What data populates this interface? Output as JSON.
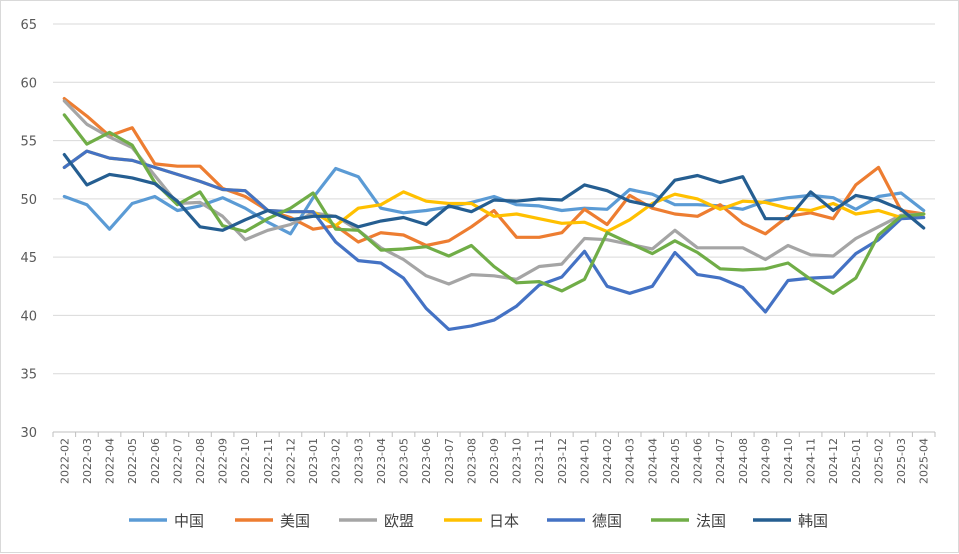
{
  "chart_data": {
    "type": "line",
    "title": "",
    "xlabel": "",
    "ylabel": "",
    "ylim": [
      30,
      65
    ],
    "yticks": [
      30,
      35,
      40,
      45,
      50,
      55,
      60,
      65
    ],
    "grid": "horizontal",
    "legend_position": "bottom",
    "x": [
      "2022-02",
      "2022-03",
      "2022-04",
      "2022-05",
      "2022-06",
      "2022-07",
      "2022-08",
      "2022-09",
      "2022-10",
      "2022-11",
      "2022-12",
      "2023-01",
      "2023-02",
      "2023-03",
      "2023-04",
      "2023-05",
      "2023-06",
      "2023-07",
      "2023-08",
      "2023-09",
      "2023-10",
      "2023-11",
      "2023-12",
      "2024-01",
      "2024-02",
      "2024-03",
      "2024-04",
      "2024-05",
      "2024-06",
      "2024-07",
      "2024-08",
      "2024-09",
      "2024-10",
      "2024-11",
      "2024-12",
      "2025-01",
      "2025-02",
      "2025-03",
      "2025-04"
    ],
    "series": [
      {
        "name": "中国",
        "color": "#5B9BD5",
        "values": [
          50.2,
          49.5,
          47.4,
          49.6,
          50.2,
          49.0,
          49.4,
          50.1,
          49.2,
          48.0,
          47.0,
          50.1,
          52.6,
          51.9,
          49.2,
          48.8,
          49.0,
          49.3,
          49.7,
          50.2,
          49.5,
          49.4,
          49.0,
          49.2,
          49.1,
          50.8,
          50.4,
          49.5,
          49.5,
          49.4,
          49.1,
          49.8,
          50.1,
          50.3,
          50.1,
          49.1,
          50.2,
          50.5,
          49.0
        ]
      },
      {
        "name": "美国",
        "color": "#ED7D31",
        "values": [
          58.6,
          57.1,
          55.4,
          56.1,
          53.0,
          52.8,
          52.8,
          50.9,
          50.2,
          49.0,
          48.4,
          47.4,
          47.7,
          46.3,
          47.1,
          46.9,
          46.0,
          46.4,
          47.6,
          49.0,
          46.7,
          46.7,
          47.1,
          49.1,
          47.8,
          50.3,
          49.2,
          48.7,
          48.5,
          49.5,
          47.9,
          47.0,
          48.5,
          48.8,
          48.3,
          51.2,
          52.7,
          49.0,
          48.7
        ]
      },
      {
        "name": "欧盟",
        "color": "#A5A5A5",
        "values": [
          58.4,
          56.4,
          55.3,
          54.4,
          52.0,
          49.6,
          49.7,
          48.5,
          46.5,
          47.3,
          47.8,
          48.8,
          48.5,
          47.3,
          45.8,
          44.8,
          43.4,
          42.7,
          43.5,
          43.4,
          43.1,
          44.2,
          44.4,
          46.6,
          46.5,
          46.1,
          45.7,
          47.3,
          45.8,
          45.8,
          45.8,
          44.8,
          46.0,
          45.2,
          45.1,
          46.6,
          47.6,
          48.6,
          48.7
        ]
      },
      {
        "name": "日本",
        "color": "#FFC000",
        "values": [
          52.7,
          54.1,
          53.5,
          53.3,
          52.7,
          52.1,
          51.5,
          50.8,
          50.7,
          49.0,
          48.9,
          48.9,
          47.7,
          49.2,
          49.5,
          50.6,
          49.8,
          49.6,
          49.6,
          48.5,
          48.7,
          48.3,
          47.9,
          48.0,
          47.2,
          48.2,
          49.6,
          50.4,
          50.0,
          49.1,
          49.8,
          49.7,
          49.2,
          49.0,
          49.6,
          48.7,
          49.0,
          48.4,
          48.7
        ]
      },
      {
        "name": "德国",
        "color": "#4472C4",
        "values": [
          52.7,
          54.1,
          53.5,
          53.3,
          52.7,
          52.1,
          51.5,
          50.8,
          50.7,
          49.0,
          48.9,
          48.9,
          46.3,
          44.7,
          44.5,
          43.2,
          40.6,
          38.8,
          39.1,
          39.6,
          40.8,
          42.6,
          43.3,
          45.5,
          42.5,
          41.9,
          42.5,
          45.4,
          43.5,
          43.2,
          42.4,
          40.3,
          43.0,
          43.2,
          43.3,
          45.3,
          46.5,
          48.3,
          48.4
        ]
      },
      {
        "name": "法国",
        "color": "#70AD47",
        "values": [
          57.2,
          54.7,
          55.7,
          54.6,
          51.4,
          49.5,
          50.6,
          47.7,
          47.2,
          48.3,
          49.2,
          50.5,
          47.4,
          47.3,
          45.6,
          45.7,
          45.9,
          45.1,
          46.0,
          44.2,
          42.8,
          42.9,
          42.1,
          43.1,
          47.1,
          46.2,
          45.3,
          46.4,
          45.4,
          44.0,
          43.9,
          44.0,
          44.5,
          43.1,
          41.9,
          43.2,
          46.9,
          48.5,
          48.7
        ]
      },
      {
        "name": "韩国",
        "color": "#255E91",
        "values": [
          53.8,
          51.2,
          52.1,
          51.8,
          51.3,
          49.8,
          47.6,
          47.3,
          48.2,
          49.0,
          48.2,
          48.5,
          48.5,
          47.6,
          48.1,
          48.4,
          47.8,
          49.4,
          48.9,
          49.9,
          49.8,
          50.0,
          49.9,
          51.2,
          50.7,
          49.8,
          49.4,
          51.6,
          52.0,
          51.4,
          51.9,
          48.3,
          48.3,
          50.6,
          49.0,
          50.3,
          49.9,
          49.1,
          47.5
        ]
      }
    ]
  }
}
